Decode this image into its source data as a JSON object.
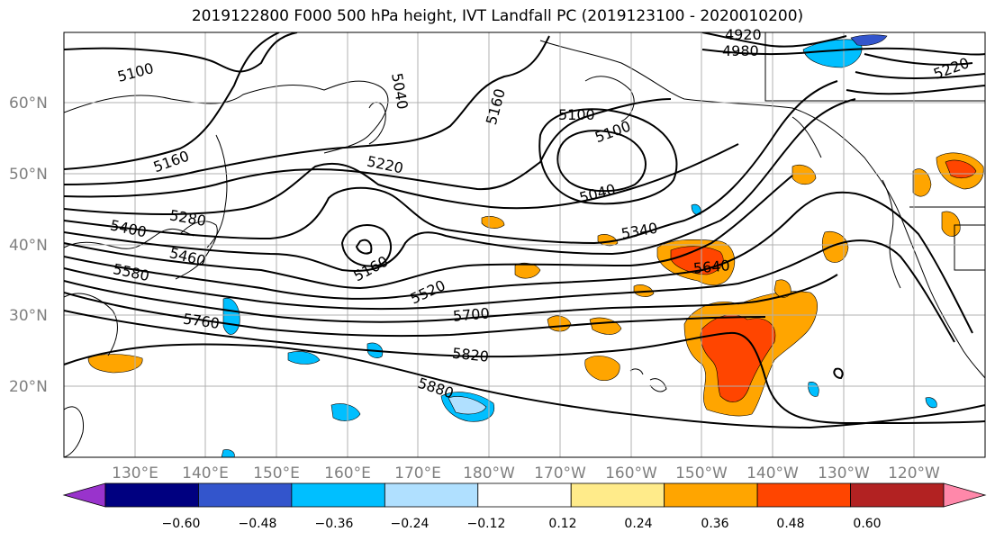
{
  "title": "2019122800 F000 500 hPa height, IVT Landfall PC (2019123100 - 2020010200)",
  "lat_labels": [
    "60°N",
    "50°N",
    "40°N",
    "30°N",
    "20°N"
  ],
  "lon_labels": [
    "130°E",
    "140°E",
    "150°E",
    "160°E",
    "170°E",
    "180°W",
    "170°W",
    "160°W",
    "150°W",
    "140°W",
    "130°W",
    "120°W"
  ],
  "contour_labels": [
    "5100",
    "5160",
    "5280",
    "5400",
    "5460",
    "5580",
    "5760",
    "5220",
    "5160",
    "5520",
    "5700",
    "5820",
    "5880",
    "5160",
    "5100",
    "5100",
    "5040",
    "5340",
    "5640",
    "4920",
    "4980",
    "5220",
    "5040"
  ],
  "colorbar": {
    "ticks": [
      "−0.60",
      "−0.48",
      "−0.36",
      "−0.24",
      "−0.12",
      "0.12",
      "0.24",
      "0.36",
      "0.48",
      "0.60"
    ],
    "colors": [
      "#9933cc",
      "#000080",
      "#3355cc",
      "#00bfff",
      "#b0e0ff",
      "#ffffff",
      "#ffeb8a",
      "#ffa500",
      "#ff4500",
      "#b22222",
      "#ff88aa"
    ]
  },
  "map_colors": {
    "height_contour": "#000000",
    "coastline": "#000000",
    "grid": "#b0b0b0",
    "tick_label": "#7f7f7f"
  }
}
